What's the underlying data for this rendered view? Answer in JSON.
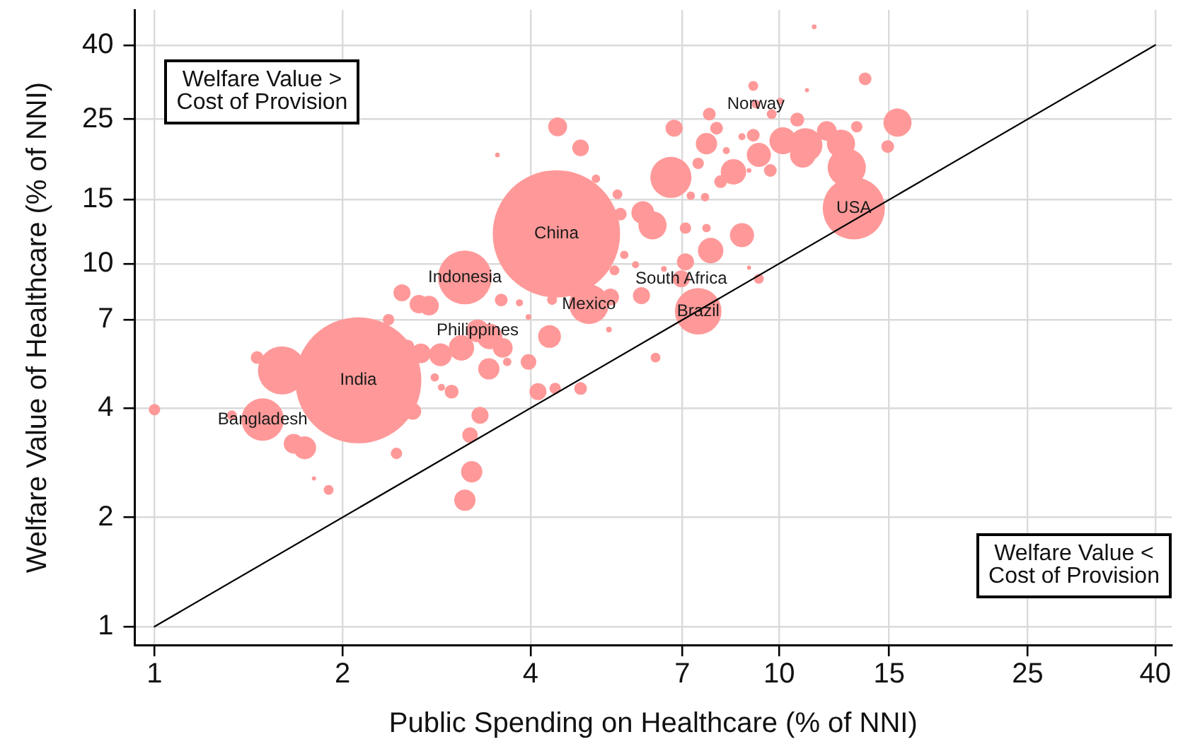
{
  "chart_data": {
    "type": "bubble",
    "xlabel": "Public Spending on Healthcare (% of NNI)",
    "ylabel": "Welfare Value of Healthcare (% of NNI)",
    "log": "xy",
    "grid": true,
    "xlim": [
      0.93,
      42.5
    ],
    "ylim": [
      0.89,
      50
    ],
    "xticks": [
      1,
      2,
      4,
      7,
      10,
      15,
      25,
      40
    ],
    "yticks": [
      1,
      2,
      4,
      7,
      10,
      15,
      25,
      40
    ],
    "series": [
      {
        "color": "#ff9999",
        "x": [
          4.4,
          2.12,
          13.17,
          3.14,
          1.6,
          7.42,
          1.49,
          6.71,
          4.96,
          12.83,
          11.02,
          6.27,
          12.56,
          15.47,
          10.14,
          3.1,
          3.44,
          10.91,
          8.45,
          7.77,
          8.72,
          9.28,
          1.74,
          2.87,
          3.29,
          4.29,
          6.05,
          3.43,
          3.22,
          3.14,
          7.65,
          1.67,
          2.67,
          3.61,
          2.75,
          11.92,
          4.42,
          2.65,
          1.0,
          1.33,
          1.46,
          1.8,
          1.9,
          2.44,
          2.59,
          2.81,
          2.88,
          2.99,
          3.67,
          3.97,
          5.34,
          4.11,
          4.38,
          4.81,
          6.34,
          3.32,
          3.2,
          2.37,
          2.49,
          3.59,
          3.84,
          4.33,
          5.37,
          6.02,
          5.65,
          5.89,
          5.45,
          3.97,
          5.57,
          4.81,
          3.54,
          5.09,
          5.51,
          11.38,
          13.73,
          9.09,
          11.08,
          9.18,
          10.04,
          9.73,
          7.73,
          6.79,
          7.94,
          10.69,
          8.72,
          9.09,
          13.31,
          14.92,
          8.23,
          7.42,
          9.68,
          8.95,
          8.06,
          7.22,
          7.61,
          7.08,
          7.65,
          7.08,
          6.54,
          8.95,
          9.28,
          6.97,
          2.54
        ],
        "values": [
          12.08,
          4.77,
          14.2,
          9.16,
          5.08,
          7.39,
          3.72,
          17.28,
          7.73,
          18.39,
          21.21,
          12.75,
          21.4,
          24.47,
          21.79,
          5.86,
          6.3,
          19.93,
          17.9,
          10.86,
          11.98,
          19.93,
          3.11,
          5.61,
          6.53,
          6.3,
          13.82,
          5.13,
          2.67,
          2.23,
          21.4,
          3.19,
          5.66,
          5.86,
          7.66,
          23.19,
          23.82,
          7.73,
          3.96,
          3.82,
          5.51,
          2.56,
          2.38,
          3.0,
          3.92,
          4.86,
          4.56,
          4.44,
          5.36,
          5.36,
          6.58,
          4.44,
          4.53,
          4.53,
          5.51,
          3.82,
          3.37,
          7.01,
          8.31,
          7.94,
          7.8,
          7.94,
          8.09,
          8.16,
          10.57,
          9.93,
          9.58,
          7.13,
          13.69,
          20.84,
          19.93,
          17.13,
          15.52,
          44.9,
          32.29,
          30.87,
          30.06,
          27.49,
          27.99,
          25.82,
          25.82,
          23.61,
          23.61,
          24.92,
          22.38,
          22.58,
          23.82,
          21.02,
          20.47,
          18.89,
          18.06,
          18.06,
          16.82,
          15.38,
          15.25,
          12.53,
          12.53,
          10.11,
          9.67,
          9.75,
          9.08,
          9.08,
          5.91
        ],
        "sizes": [
          1,
          0.98,
          0.239,
          0.178,
          0.143,
          0.134,
          0.111,
          0.104,
          0.097,
          0.09,
          0.071,
          0.049,
          0.049,
          0.049,
          0.045,
          0.04,
          0.04,
          0.04,
          0.04,
          0.04,
          0.036,
          0.036,
          0.032,
          0.032,
          0.032,
          0.032,
          0.032,
          0.028,
          0.028,
          0.028,
          0.028,
          0.024,
          0.024,
          0.024,
          0.024,
          0.024,
          0.022,
          0.021,
          0.008,
          0.006,
          0.01,
          0.0011,
          0.006,
          0.008,
          0.018,
          0.0044,
          0.0031,
          0.012,
          0.0044,
          0.015,
          0.002,
          0.018,
          0.008,
          0.01,
          0.006,
          0.018,
          0.015,
          0.008,
          0.018,
          0.01,
          0.0031,
          0.006,
          0.018,
          0.018,
          0.0044,
          0.0031,
          0.006,
          0.002,
          0.01,
          0.017,
          0.0014,
          0.0044,
          0.006,
          0.0014,
          0.01,
          0.006,
          0.0011,
          0.0044,
          0.0031,
          0.006,
          0.01,
          0.018,
          0.01,
          0.012,
          0.0031,
          0.01,
          0.008,
          0.01,
          0.0031,
          0.008,
          0.01,
          0.0014,
          0.01,
          0.0044,
          0.0044,
          0.008,
          0.0044,
          0.018,
          0.002,
          0.0011,
          0.006,
          0.018,
          0.012
        ]
      },
      {
        "type": "line",
        "color": "#000000",
        "x": [
          1,
          40
        ],
        "values": [
          1,
          40
        ]
      }
    ],
    "annotations": [
      "Welfare Value > Cost of Provision",
      "Welfare Value < Cost of Provision",
      {
        "text": "Bangladesh",
        "x": 1.49,
        "y": 3.72
      },
      {
        "text": "India",
        "x": 2.12,
        "y": 4.77
      },
      {
        "text": "Philippines",
        "x": 3.29,
        "y": 6.53
      },
      {
        "text": "Indonesia",
        "x": 3.14,
        "y": 9.16
      },
      {
        "text": "Mexico",
        "x": 4.96,
        "y": 7.73
      },
      {
        "text": "China",
        "x": 4.4,
        "y": 12.08
      },
      {
        "text": "South Africa",
        "x": 6.97,
        "y": 9.08
      },
      {
        "text": "Brazil",
        "x": 7.42,
        "y": 7.39
      },
      {
        "text": "USA",
        "x": 13.17,
        "y": 14.2
      },
      {
        "text": "Norway",
        "x": 9.18,
        "y": 27.49
      }
    ]
  }
}
